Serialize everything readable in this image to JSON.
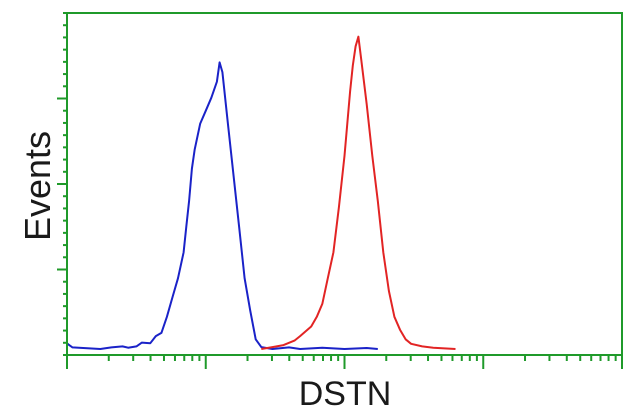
{
  "chart_data": {
    "type": "line",
    "title": "",
    "xlabel": "DSTN",
    "ylabel": "Events",
    "x_scale": "log",
    "xlim": [
      0,
      1
    ],
    "ylim": [
      0,
      1
    ],
    "grid": false,
    "legend": "none",
    "frame_color": "#1f9a2a",
    "series": [
      {
        "color": "#1a22c8",
        "points": [
          [
            0.0,
            0.018
          ],
          [
            0.004,
            0.012
          ],
          [
            0.01,
            0.005
          ],
          [
            0.06,
            0.0
          ],
          [
            0.08,
            0.005
          ],
          [
            0.1,
            0.008
          ],
          [
            0.11,
            0.004
          ],
          [
            0.125,
            0.008
          ],
          [
            0.135,
            0.02
          ],
          [
            0.15,
            0.018
          ],
          [
            0.16,
            0.04
          ],
          [
            0.17,
            0.05
          ],
          [
            0.18,
            0.1
          ],
          [
            0.19,
            0.16
          ],
          [
            0.2,
            0.22
          ],
          [
            0.21,
            0.3
          ],
          [
            0.215,
            0.38
          ],
          [
            0.22,
            0.46
          ],
          [
            0.225,
            0.56
          ],
          [
            0.23,
            0.62
          ],
          [
            0.24,
            0.7
          ],
          [
            0.25,
            0.74
          ],
          [
            0.26,
            0.78
          ],
          [
            0.27,
            0.83
          ],
          [
            0.275,
            0.89
          ],
          [
            0.28,
            0.86
          ],
          [
            0.29,
            0.7
          ],
          [
            0.3,
            0.54
          ],
          [
            0.31,
            0.38
          ],
          [
            0.32,
            0.22
          ],
          [
            0.33,
            0.12
          ],
          [
            0.34,
            0.03
          ],
          [
            0.35,
            0.006
          ],
          [
            0.37,
            0.0
          ],
          [
            0.4,
            0.005
          ],
          [
            0.42,
            0.0
          ],
          [
            0.46,
            0.004
          ],
          [
            0.5,
            0.0
          ],
          [
            0.54,
            0.003
          ],
          [
            0.56,
            0.0
          ]
        ]
      },
      {
        "color": "#e22424",
        "points": [
          [
            0.35,
            0.0
          ],
          [
            0.37,
            0.006
          ],
          [
            0.39,
            0.012
          ],
          [
            0.41,
            0.026
          ],
          [
            0.42,
            0.04
          ],
          [
            0.44,
            0.07
          ],
          [
            0.45,
            0.1
          ],
          [
            0.46,
            0.14
          ],
          [
            0.47,
            0.22
          ],
          [
            0.48,
            0.3
          ],
          [
            0.49,
            0.44
          ],
          [
            0.5,
            0.6
          ],
          [
            0.505,
            0.7
          ],
          [
            0.51,
            0.8
          ],
          [
            0.515,
            0.88
          ],
          [
            0.52,
            0.94
          ],
          [
            0.525,
            0.97
          ],
          [
            0.53,
            0.9
          ],
          [
            0.54,
            0.76
          ],
          [
            0.55,
            0.6
          ],
          [
            0.56,
            0.46
          ],
          [
            0.57,
            0.3
          ],
          [
            0.58,
            0.18
          ],
          [
            0.59,
            0.1
          ],
          [
            0.6,
            0.06
          ],
          [
            0.61,
            0.03
          ],
          [
            0.62,
            0.016
          ],
          [
            0.64,
            0.008
          ],
          [
            0.66,
            0.004
          ],
          [
            0.7,
            0.0
          ]
        ]
      }
    ]
  }
}
